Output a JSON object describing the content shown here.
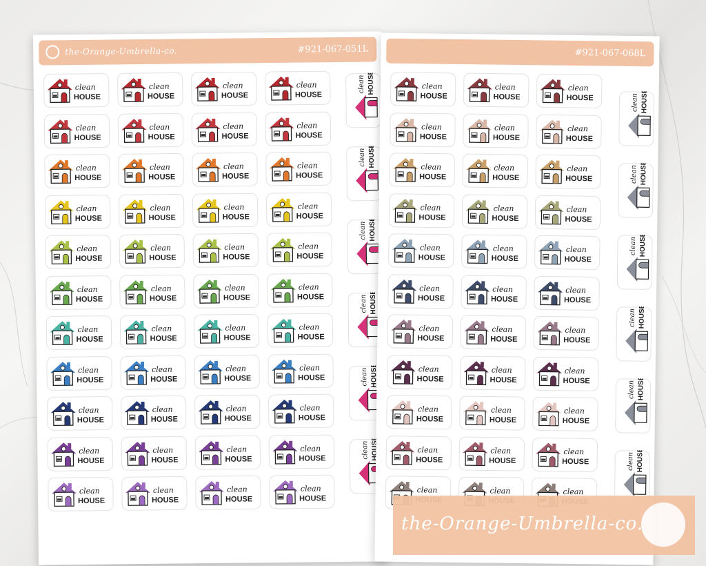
{
  "brand": "the-Orange-Umbrella-co.",
  "sheets": [
    {
      "sku": "#921-067-051L",
      "colors": [
        "#b52a2f",
        "#c2383f",
        "#e0782d",
        "#e6c51f",
        "#a9c04a",
        "#6aa84f",
        "#4bb3a4",
        "#3b7fc4",
        "#263a77",
        "#7a3f96",
        "#9d6bbf"
      ],
      "vertical_color": "#d6327a"
    },
    {
      "sku": "#921-067-068L",
      "colors": [
        "#8a3b3f",
        "#d9b8a8",
        "#c9a06a",
        "#a7a77a",
        "#8fa3b6",
        "#3f4d6b",
        "#9a7b8c",
        "#5d2f4f",
        "#e4c6c0",
        "#a05c6b",
        "#8f7f7a"
      ],
      "vertical_color": "#8a8f99"
    }
  ],
  "sticker_text": {
    "word1": "clean",
    "word2": "HOUSE"
  },
  "watermark": {
    "text": "the-Orange-Umbrella-co."
  }
}
